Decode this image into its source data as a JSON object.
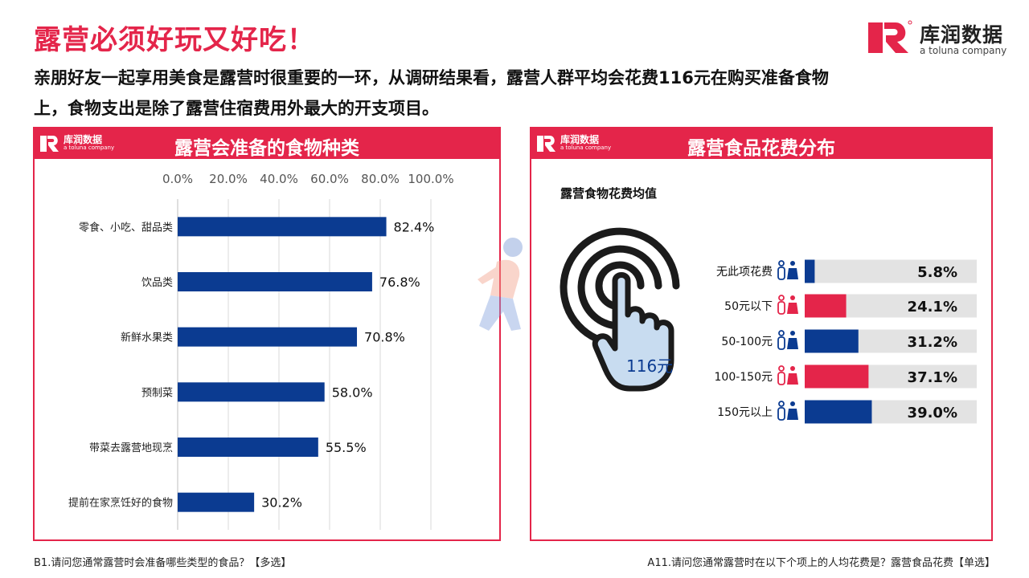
{
  "header": {
    "title": "露营必须好玩又好吃！",
    "subtitle": "亲朋好友一起享用美食是露营时很重要的一环，从调研结果看，露营人群平均会花费116元在购买准备食物上，食物支出是除了露营住宿费用外最大的开支项目。",
    "brand_cn": "库润数据",
    "brand_en": "a toluna company"
  },
  "colors": {
    "accent": "#e4254a",
    "bar_blue": "#0b3b91",
    "track_gray": "#e3e3e3"
  },
  "left_panel": {
    "title": "露营会准备的食物种类",
    "footnote": "B1.请问您通常露营时会准备哪些类型的食品？【多选】"
  },
  "right_panel": {
    "title": "露营食品花费分布",
    "avg_label": "露营食物花费均值",
    "avg_value": "116元",
    "footnote": "A11.请问您通常露营时在以下个项上的人均花费是？露营食品花费【单选】"
  },
  "chart_data": [
    {
      "type": "bar",
      "orientation": "horizontal",
      "categories": [
        "零食、小吃、甜品类",
        "饮品类",
        "新鲜水果类",
        "预制菜",
        "带菜去露营地现烹",
        "提前在家烹饪好的食物"
      ],
      "values": [
        82.4,
        76.8,
        70.8,
        58.0,
        55.5,
        30.2
      ],
      "value_labels": [
        "82.4%",
        "76.8%",
        "70.8%",
        "58.0%",
        "55.5%",
        "30.2%"
      ],
      "xlim": [
        0,
        100
      ],
      "x_ticks": [
        "0.0%",
        "20.0%",
        "40.0%",
        "60.0%",
        "80.0%",
        "100.0%"
      ],
      "x_axis_position": "top",
      "grid": true,
      "color": "#0b3b91"
    },
    {
      "type": "bar",
      "orientation": "horizontal",
      "categories": [
        "无此项花费",
        "50元以下",
        "50-100元",
        "100-150元",
        "150元以上"
      ],
      "values": [
        5.8,
        24.1,
        31.2,
        37.1,
        39.0
      ],
      "value_labels": [
        "5.8%",
        "24.1%",
        "31.2%",
        "37.1%",
        "39.0%"
      ],
      "xlim": [
        0,
        100
      ],
      "bar_colors": [
        "#0b3b91",
        "#e4254a",
        "#0b3b91",
        "#e4254a",
        "#0b3b91"
      ],
      "grid": false
    }
  ]
}
